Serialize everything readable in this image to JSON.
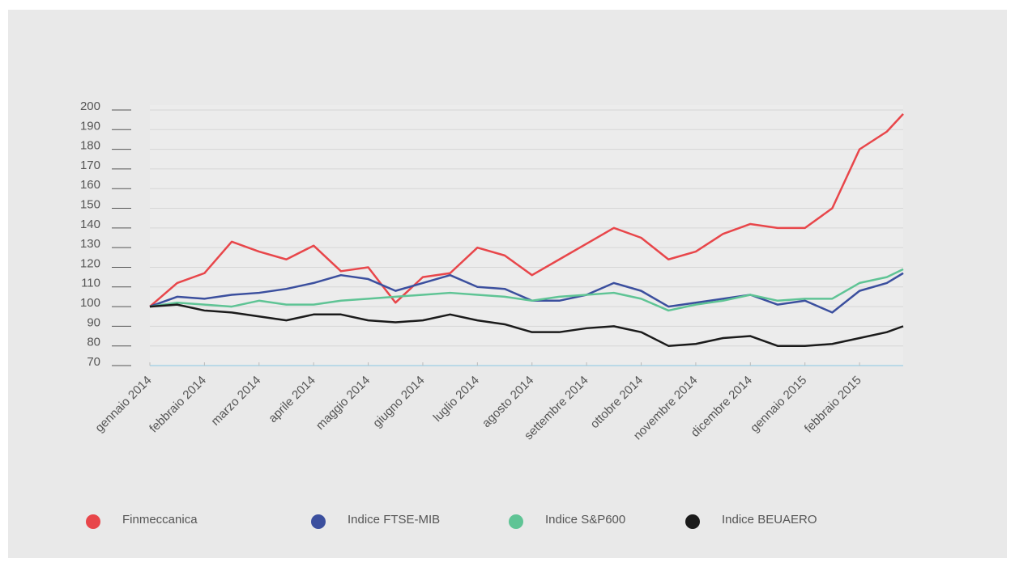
{
  "chart_data": {
    "type": "line",
    "x": [
      0,
      0.5,
      1,
      1.5,
      2,
      2.5,
      3,
      3.5,
      4,
      4.5,
      5,
      5.5,
      6,
      6.5,
      7,
      7.5,
      8,
      8.5,
      9,
      9.5,
      10,
      10.5,
      11,
      11.5,
      12,
      12.5,
      13,
      13.5,
      13.8
    ],
    "xlim": [
      0,
      13.8
    ],
    "xticks": [
      {
        "value": 0,
        "label": "gennaio 2014"
      },
      {
        "value": 1,
        "label": "febbraio 2014"
      },
      {
        "value": 2,
        "label": "marzo 2014"
      },
      {
        "value": 3,
        "label": "aprile 2014"
      },
      {
        "value": 4,
        "label": "maggio 2014"
      },
      {
        "value": 5,
        "label": "giugno 2014"
      },
      {
        "value": 6,
        "label": "luglio 2014"
      },
      {
        "value": 7,
        "label": "agosto 2014"
      },
      {
        "value": 8,
        "label": "settembre 2014"
      },
      {
        "value": 9,
        "label": "ottobre 2014"
      },
      {
        "value": 10,
        "label": "novembre 2014"
      },
      {
        "value": 11,
        "label": "dicembre 2014"
      },
      {
        "value": 12,
        "label": "gennaio 2015"
      },
      {
        "value": 13,
        "label": "febbraio 2015"
      }
    ],
    "ylim": [
      70,
      200
    ],
    "yticks": [
      70,
      80,
      90,
      100,
      110,
      120,
      130,
      140,
      150,
      160,
      170,
      180,
      190,
      200
    ],
    "grid": true,
    "legend": "bottom",
    "series": [
      {
        "name": "Finmeccanica",
        "color": "#e8464a",
        "values": [
          100,
          112,
          117,
          133,
          128,
          124,
          131,
          118,
          120,
          102,
          115,
          117,
          130,
          126,
          116,
          124,
          132,
          140,
          135,
          124,
          128,
          137,
          142,
          140,
          140,
          150,
          180,
          189,
          198
        ]
      },
      {
        "name": "Indice FTSE-MIB",
        "color": "#3b4f9e",
        "values": [
          100,
          105,
          104,
          106,
          107,
          109,
          112,
          116,
          114,
          108,
          112,
          116,
          110,
          109,
          103,
          103,
          106,
          112,
          108,
          100,
          102,
          104,
          106,
          101,
          103,
          97,
          108,
          112,
          117
        ]
      },
      {
        "name": "Indice S&P600",
        "color": "#5fc495",
        "values": [
          100,
          102,
          101,
          100,
          103,
          101,
          101,
          103,
          104,
          105,
          106,
          107,
          106,
          105,
          103,
          105,
          106,
          107,
          104,
          98,
          101,
          103,
          106,
          103,
          104,
          104,
          112,
          115,
          119
        ]
      },
      {
        "name": "Indice BEUAERO",
        "color": "#1b1b1b",
        "values": [
          100,
          101,
          98,
          97,
          95,
          93,
          96,
          96,
          93,
          92,
          93,
          96,
          93,
          91,
          87,
          87,
          89,
          90,
          87,
          80,
          81,
          84,
          85,
          80,
          80,
          81,
          84,
          87,
          90
        ]
      }
    ]
  }
}
